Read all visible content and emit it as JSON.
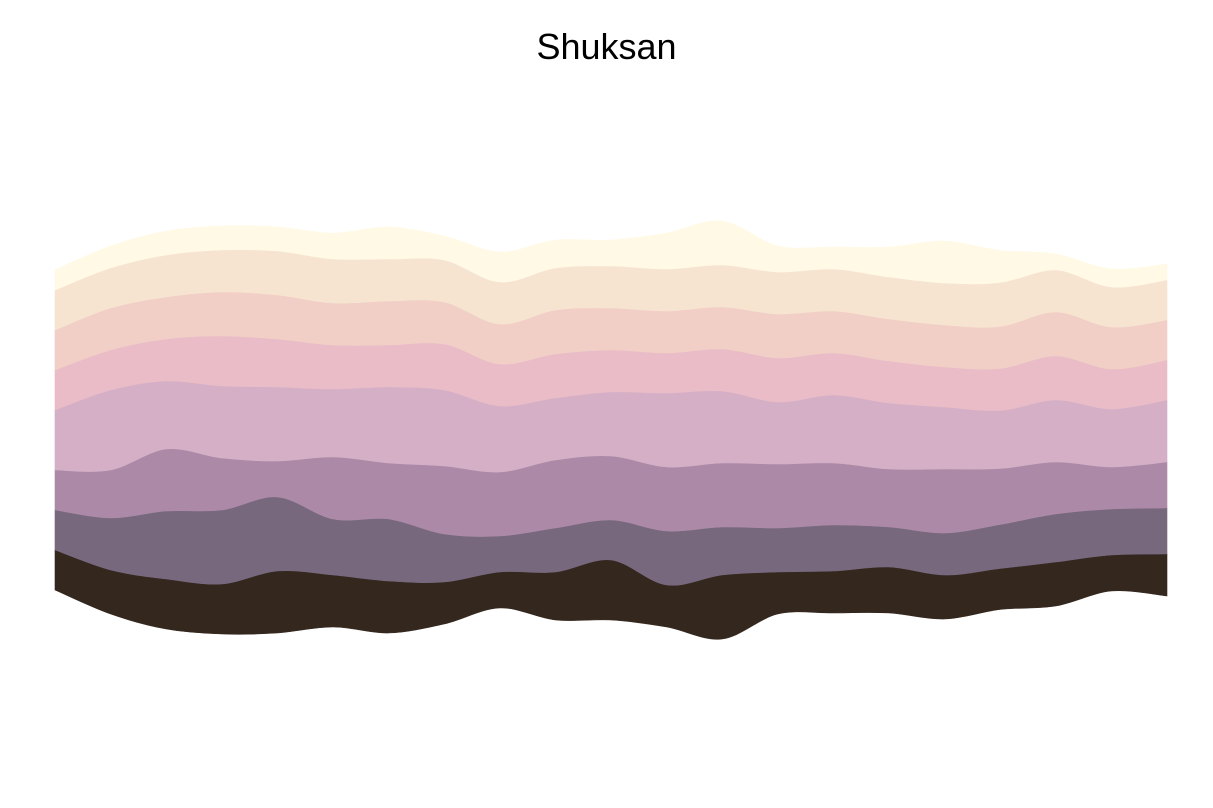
{
  "chart_data": {
    "type": "area",
    "title": "Shuksan",
    "xlabel": "",
    "ylabel": "",
    "layout": "streamgraph",
    "grid": false,
    "axes_visible": false,
    "legend": "none",
    "x": [
      0,
      1,
      2,
      3,
      4,
      5,
      6,
      7,
      8,
      9,
      10,
      11,
      12,
      13,
      14,
      15,
      16,
      17,
      18,
      19,
      20
    ],
    "series": [
      {
        "color": "#34271e",
        "values": [
          4.0,
          4.4,
          5.0,
          5.0,
          6.2,
          5.2,
          5.2,
          4.2,
          3.6,
          4.8,
          6.0,
          4.2,
          6.4,
          4.2,
          4.2,
          4.6,
          4.4,
          4.1,
          4.4,
          3.6,
          4.2
        ]
      },
      {
        "color": "#77687e",
        "values": [
          4.0,
          5.2,
          6.8,
          7.4,
          7.4,
          5.6,
          6.2,
          4.8,
          3.6,
          4.4,
          4.0,
          5.4,
          4.8,
          4.4,
          4.6,
          4.0,
          4.2,
          4.4,
          4.8,
          4.6,
          4.6
        ]
      },
      {
        "color": "#ac8aa7",
        "values": [
          4.0,
          4.8,
          6.2,
          5.2,
          3.6,
          6.2,
          5.6,
          6.8,
          6.4,
          6.8,
          6.4,
          6.4,
          6.4,
          6.4,
          6.2,
          5.8,
          6.4,
          5.6,
          5.2,
          4.2,
          4.6
        ]
      },
      {
        "color": "#d4afc6",
        "values": [
          6.0,
          8.0,
          6.8,
          7.2,
          7.4,
          6.8,
          7.6,
          7.6,
          6.6,
          6.2,
          6.4,
          7.4,
          7.2,
          6.2,
          6.8,
          6.6,
          6.2,
          5.8,
          6.2,
          5.8,
          6.2
        ]
      },
      {
        "color": "#e9bcc7",
        "values": [
          4.0,
          4.0,
          4.2,
          5.0,
          4.8,
          4.4,
          4.2,
          4.6,
          4.2,
          4.4,
          4.2,
          4.0,
          4.2,
          4.4,
          4.2,
          4.2,
          4.0,
          4.2,
          4.4,
          4.0,
          4.0
        ]
      },
      {
        "color": "#f1cfc6",
        "values": [
          4.0,
          4.2,
          4.2,
          4.4,
          4.4,
          4.2,
          4.4,
          4.2,
          4.0,
          4.4,
          4.2,
          4.2,
          4.2,
          4.4,
          4.2,
          4.2,
          4.2,
          4.2,
          4.4,
          4.2,
          4.0
        ]
      },
      {
        "color": "#f7e4d0",
        "values": [
          4.0,
          4.0,
          4.2,
          4.2,
          4.4,
          4.4,
          4.2,
          4.2,
          4.2,
          4.2,
          4.2,
          4.2,
          4.2,
          4.2,
          4.2,
          4.2,
          4.2,
          4.4,
          4.2,
          4.0,
          4.0
        ]
      },
      {
        "color": "#fff9e6",
        "values": [
          2.0,
          2.2,
          2.4,
          2.4,
          2.4,
          2.6,
          3.2,
          2.4,
          3.0,
          2.8,
          2.6,
          3.6,
          4.4,
          2.6,
          2.2,
          3.0,
          4.2,
          3.2,
          1.6,
          1.8,
          1.6
        ]
      }
    ]
  }
}
